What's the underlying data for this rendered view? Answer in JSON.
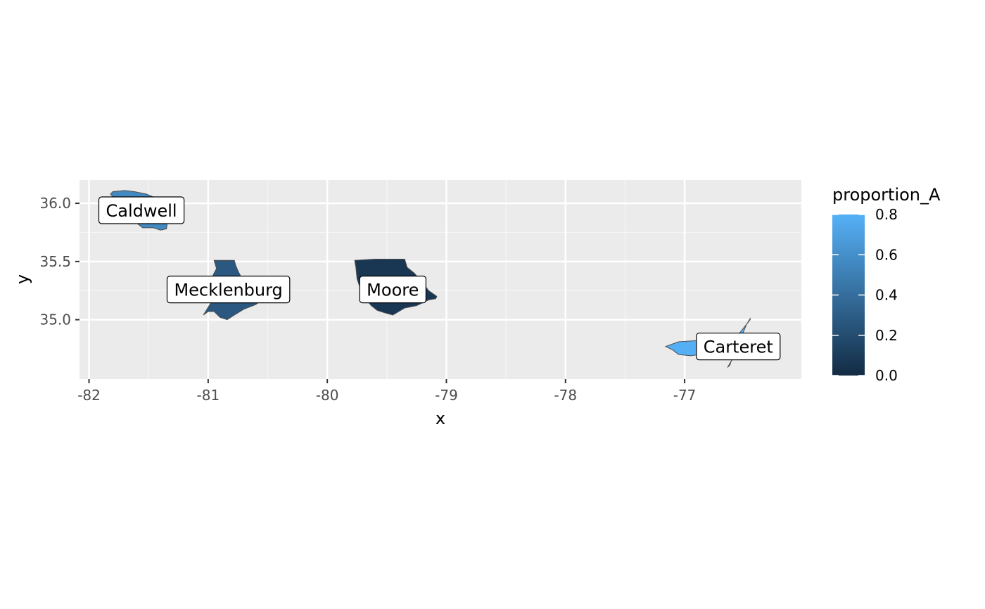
{
  "chart_data": {
    "type": "choropleth-map",
    "title": "",
    "xlabel": "x",
    "ylabel": "y",
    "xlim": [
      -82.08,
      -76.02
    ],
    "ylim": [
      34.49,
      36.2
    ],
    "x_ticks": [
      -82,
      -81,
      -80,
      -79,
      -78,
      -77
    ],
    "y_ticks": [
      35.0,
      35.5,
      36.0
    ],
    "x_tick_labels": [
      "-82",
      "-81",
      "-80",
      "-79",
      "-78",
      "-77"
    ],
    "y_tick_labels": [
      "35.0",
      "35.5",
      "36.0"
    ],
    "grid": true,
    "legend": {
      "title": "proportion_A",
      "position": "right",
      "range": [
        0,
        0.8
      ],
      "breaks": [
        0.0,
        0.2,
        0.4,
        0.6,
        0.8
      ],
      "break_labels": [
        "0.0",
        "0.2",
        "0.4",
        "0.6",
        "0.8"
      ],
      "low_color": "#132B43",
      "high_color": "#56B1F7"
    },
    "regions": [
      {
        "name": "Caldwell",
        "value": 0.56,
        "label_lon": -81.56,
        "label_lat": 35.94,
        "outline": [
          [
            -81.8,
            36.1
          ],
          [
            -81.7,
            36.11
          ],
          [
            -81.62,
            36.1
          ],
          [
            -81.52,
            36.08
          ],
          [
            -81.45,
            36.05
          ],
          [
            -81.44,
            36.0
          ],
          [
            -81.4,
            35.95
          ],
          [
            -81.36,
            35.92
          ],
          [
            -81.34,
            35.85
          ],
          [
            -81.35,
            35.78
          ],
          [
            -81.4,
            35.77
          ],
          [
            -81.46,
            35.79
          ],
          [
            -81.55,
            35.79
          ],
          [
            -81.6,
            35.83
          ],
          [
            -81.65,
            35.88
          ],
          [
            -81.7,
            35.93
          ],
          [
            -81.75,
            35.98
          ],
          [
            -81.78,
            36.03
          ],
          [
            -81.82,
            36.08
          ]
        ]
      },
      {
        "name": "Mecklenburg",
        "value": 0.27,
        "label_lon": -80.83,
        "label_lat": 35.26,
        "outline": [
          [
            -80.95,
            35.51
          ],
          [
            -80.78,
            35.51
          ],
          [
            -80.77,
            35.47
          ],
          [
            -80.75,
            35.42
          ],
          [
            -80.72,
            35.36
          ],
          [
            -80.69,
            35.28
          ],
          [
            -80.62,
            35.22
          ],
          [
            -80.55,
            35.17
          ],
          [
            -80.6,
            35.13
          ],
          [
            -80.7,
            35.09
          ],
          [
            -80.78,
            35.04
          ],
          [
            -80.84,
            35.0
          ],
          [
            -80.9,
            35.02
          ],
          [
            -80.95,
            35.07
          ],
          [
            -81.0,
            35.07
          ],
          [
            -81.04,
            35.04
          ],
          [
            -80.98,
            35.14
          ],
          [
            -80.96,
            35.22
          ],
          [
            -80.97,
            35.3
          ],
          [
            -80.96,
            35.38
          ],
          [
            -80.93,
            35.44
          ]
        ]
      },
      {
        "name": "Moore",
        "value": 0.07,
        "label_lon": -79.45,
        "label_lat": 35.26,
        "outline": [
          [
            -79.77,
            35.51
          ],
          [
            -79.6,
            35.52
          ],
          [
            -79.35,
            35.52
          ],
          [
            -79.33,
            35.45
          ],
          [
            -79.27,
            35.4
          ],
          [
            -79.2,
            35.32
          ],
          [
            -79.15,
            35.25
          ],
          [
            -79.08,
            35.2
          ],
          [
            -79.09,
            35.18
          ],
          [
            -79.15,
            35.17
          ],
          [
            -79.25,
            35.12
          ],
          [
            -79.35,
            35.1
          ],
          [
            -79.45,
            35.04
          ],
          [
            -79.52,
            35.06
          ],
          [
            -79.58,
            35.08
          ],
          [
            -79.63,
            35.12
          ],
          [
            -79.68,
            35.18
          ],
          [
            -79.72,
            35.26
          ],
          [
            -79.75,
            35.35
          ],
          [
            -79.76,
            35.45
          ]
        ]
      },
      {
        "name": "Carteret",
        "value": 0.79,
        "label_lon": -76.55,
        "label_lat": 34.77,
        "outline": [
          [
            -77.16,
            34.77
          ],
          [
            -77.05,
            34.81
          ],
          [
            -76.9,
            34.82
          ],
          [
            -76.75,
            34.83
          ],
          [
            -76.65,
            34.84
          ],
          [
            -76.55,
            34.87
          ],
          [
            -76.45,
            35.0
          ],
          [
            -76.45,
            35.01
          ],
          [
            -76.48,
            34.96
          ],
          [
            -76.52,
            34.86
          ],
          [
            -76.55,
            34.75
          ],
          [
            -76.6,
            34.66
          ],
          [
            -76.64,
            34.59
          ],
          [
            -76.62,
            34.61
          ],
          [
            -76.6,
            34.67
          ],
          [
            -76.63,
            34.72
          ],
          [
            -76.8,
            34.71
          ],
          [
            -76.95,
            34.69
          ],
          [
            -77.05,
            34.7
          ],
          [
            -77.1,
            34.74
          ]
        ]
      }
    ]
  }
}
